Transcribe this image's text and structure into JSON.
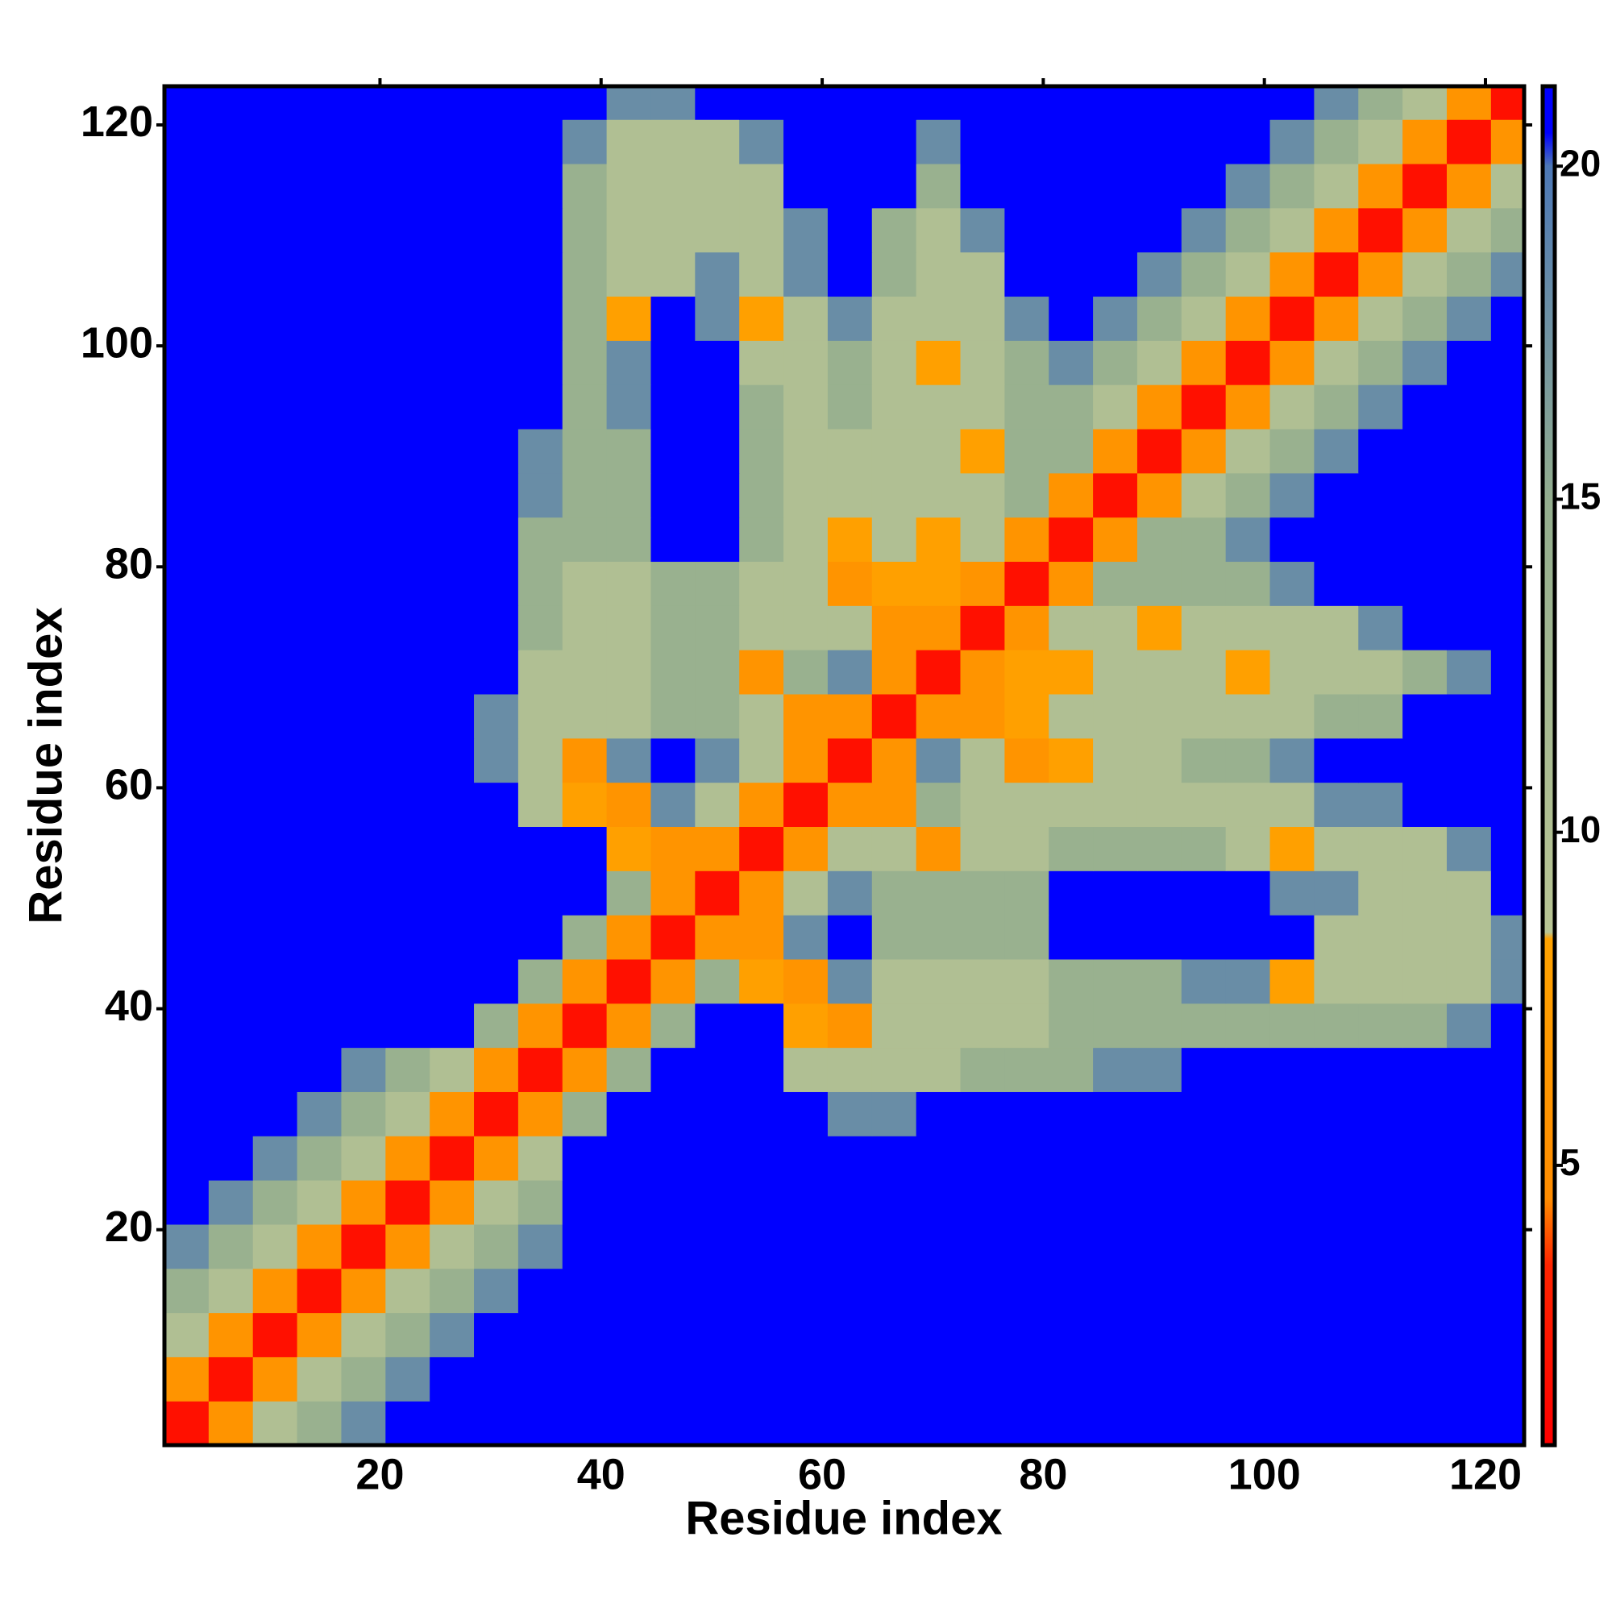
{
  "chart_data": {
    "type": "heatmap",
    "xlabel": "Residue index",
    "ylabel": "Residue index",
    "x": [
      2.5,
      6.5,
      10.5,
      14.5,
      18.5,
      22.5,
      26.5,
      30.5,
      34.5,
      38.5,
      42.5,
      46.5,
      50.5,
      54.5,
      58.5,
      62.5,
      66.5,
      70.5,
      74.5,
      78.5,
      82.5,
      86.5,
      90.5,
      94.5,
      98.5,
      102.5,
      106.5,
      110.5,
      114.5,
      118.5,
      122.5
    ],
    "y": [
      2.5,
      6.5,
      10.5,
      14.5,
      18.5,
      22.5,
      26.5,
      30.5,
      34.5,
      38.5,
      42.5,
      46.5,
      50.5,
      54.5,
      58.5,
      62.5,
      66.5,
      70.5,
      74.5,
      78.5,
      82.5,
      86.5,
      90.5,
      94.5,
      98.5,
      102.5,
      106.5,
      110.5,
      114.5,
      118.5,
      122.5
    ],
    "z": [
      [
        2,
        6,
        10,
        14,
        18,
        21,
        21,
        21,
        21,
        21,
        21,
        21,
        21,
        21,
        21,
        21,
        21,
        21,
        21,
        21,
        21,
        21,
        21,
        21,
        21,
        21,
        21,
        21,
        21,
        21,
        21
      ],
      [
        6,
        2,
        6,
        10,
        14,
        18,
        21,
        21,
        21,
        21,
        21,
        21,
        21,
        21,
        21,
        21,
        21,
        21,
        21,
        21,
        21,
        21,
        21,
        21,
        21,
        21,
        21,
        21,
        21,
        21,
        21
      ],
      [
        10,
        6,
        2,
        6,
        10,
        14,
        18,
        21,
        21,
        21,
        21,
        21,
        21,
        21,
        21,
        21,
        21,
        21,
        21,
        21,
        21,
        21,
        21,
        21,
        21,
        21,
        21,
        21,
        21,
        21,
        21
      ],
      [
        14,
        10,
        6,
        2,
        6,
        10,
        14,
        18,
        21,
        21,
        21,
        21,
        21,
        21,
        21,
        21,
        21,
        21,
        21,
        21,
        21,
        21,
        21,
        21,
        21,
        21,
        21,
        21,
        21,
        21,
        21
      ],
      [
        18,
        14,
        10,
        6,
        2,
        6,
        10,
        14,
        18,
        21,
        21,
        21,
        21,
        21,
        21,
        21,
        21,
        21,
        21,
        21,
        21,
        21,
        21,
        21,
        21,
        21,
        21,
        21,
        21,
        21,
        21
      ],
      [
        21,
        18,
        14,
        10,
        6,
        2,
        6,
        10,
        14,
        21,
        21,
        21,
        21,
        21,
        21,
        21,
        21,
        21,
        21,
        21,
        21,
        21,
        21,
        21,
        21,
        21,
        21,
        21,
        21,
        21,
        21
      ],
      [
        21,
        21,
        18,
        14,
        10,
        6,
        2,
        6,
        10,
        21,
        21,
        21,
        21,
        21,
        21,
        21,
        21,
        21,
        21,
        21,
        21,
        21,
        21,
        21,
        21,
        21,
        21,
        21,
        21,
        21,
        21
      ],
      [
        21,
        21,
        21,
        18,
        14,
        10,
        6,
        2,
        6,
        14,
        21,
        21,
        21,
        21,
        21,
        18,
        18,
        21,
        21,
        21,
        21,
        21,
        21,
        21,
        21,
        21,
        21,
        21,
        21,
        21,
        21
      ],
      [
        21,
        21,
        21,
        21,
        18,
        14,
        10,
        6,
        2,
        6,
        14,
        21,
        21,
        21,
        10,
        10,
        10,
        10,
        14,
        14,
        14,
        18,
        18,
        21,
        21,
        21,
        21,
        21,
        21,
        21,
        21
      ],
      [
        21,
        21,
        21,
        21,
        21,
        21,
        21,
        14,
        6,
        2,
        6,
        14,
        21,
        21,
        8,
        6,
        10,
        10,
        10,
        10,
        14,
        14,
        14,
        14,
        14,
        14,
        14,
        14,
        14,
        18,
        21
      ],
      [
        21,
        21,
        21,
        21,
        21,
        21,
        21,
        21,
        14,
        6,
        2,
        6,
        14,
        8,
        6,
        18,
        10,
        10,
        10,
        10,
        14,
        14,
        14,
        18,
        18,
        8,
        10,
        10,
        10,
        10,
        18
      ],
      [
        21,
        21,
        21,
        21,
        21,
        21,
        21,
        21,
        21,
        14,
        6,
        2,
        6,
        6,
        18,
        21,
        14,
        14,
        14,
        14,
        21,
        21,
        21,
        21,
        21,
        21,
        10,
        10,
        10,
        10,
        18
      ],
      [
        21,
        21,
        21,
        21,
        21,
        21,
        21,
        21,
        21,
        21,
        14,
        6,
        2,
        6,
        10,
        18,
        14,
        14,
        14,
        14,
        21,
        21,
        21,
        21,
        21,
        18,
        18,
        10,
        10,
        10,
        21
      ],
      [
        21,
        21,
        21,
        21,
        21,
        21,
        21,
        21,
        21,
        21,
        8,
        6,
        6,
        2,
        6,
        10,
        10,
        6,
        10,
        10,
        14,
        14,
        14,
        14,
        10,
        8,
        10,
        10,
        10,
        18,
        21
      ],
      [
        21,
        21,
        21,
        21,
        21,
        21,
        21,
        21,
        10,
        8,
        6,
        18,
        10,
        6,
        2,
        6,
        6,
        14,
        10,
        10,
        10,
        10,
        10,
        10,
        10,
        10,
        18,
        18,
        21,
        21,
        21
      ],
      [
        21,
        21,
        21,
        21,
        21,
        21,
        21,
        18,
        10,
        6,
        18,
        21,
        18,
        10,
        6,
        2,
        6,
        18,
        10,
        6,
        8,
        10,
        10,
        14,
        14,
        18,
        21,
        21,
        21,
        21,
        21
      ],
      [
        21,
        21,
        21,
        21,
        21,
        21,
        21,
        18,
        10,
        10,
        10,
        14,
        14,
        10,
        6,
        6,
        2,
        6,
        6,
        8,
        10,
        10,
        10,
        10,
        10,
        10,
        14,
        14,
        21,
        21,
        21
      ],
      [
        21,
        21,
        21,
        21,
        21,
        21,
        21,
        21,
        10,
        10,
        10,
        14,
        14,
        6,
        14,
        18,
        6,
        2,
        6,
        8,
        8,
        10,
        10,
        10,
        8,
        10,
        10,
        10,
        14,
        18,
        21
      ],
      [
        21,
        21,
        21,
        21,
        21,
        21,
        21,
        21,
        14,
        10,
        10,
        14,
        14,
        10,
        10,
        10,
        6,
        6,
        2,
        6,
        10,
        10,
        8,
        10,
        10,
        10,
        10,
        18,
        21,
        21,
        21
      ],
      [
        21,
        21,
        21,
        21,
        21,
        21,
        21,
        21,
        14,
        10,
        10,
        14,
        14,
        10,
        10,
        6,
        8,
        8,
        6,
        2,
        6,
        14,
        14,
        14,
        14,
        18,
        21,
        21,
        21,
        21,
        21
      ],
      [
        21,
        21,
        21,
        21,
        21,
        21,
        21,
        21,
        14,
        14,
        14,
        21,
        21,
        14,
        10,
        8,
        10,
        8,
        10,
        6,
        2,
        6,
        14,
        14,
        18,
        21,
        21,
        21,
        21,
        21,
        21
      ],
      [
        21,
        21,
        21,
        21,
        21,
        21,
        21,
        21,
        18,
        14,
        14,
        21,
        21,
        14,
        10,
        10,
        10,
        10,
        10,
        14,
        6,
        2,
        6,
        10,
        14,
        18,
        21,
        21,
        21,
        21,
        21
      ],
      [
        21,
        21,
        21,
        21,
        21,
        21,
        21,
        21,
        18,
        14,
        14,
        21,
        21,
        14,
        10,
        10,
        10,
        10,
        8,
        14,
        14,
        6,
        2,
        6,
        10,
        14,
        18,
        21,
        21,
        21,
        21
      ],
      [
        21,
        21,
        21,
        21,
        21,
        21,
        21,
        21,
        21,
        14,
        18,
        21,
        21,
        14,
        10,
        14,
        10,
        10,
        10,
        14,
        14,
        10,
        6,
        2,
        6,
        10,
        14,
        18,
        21,
        21,
        21
      ],
      [
        21,
        21,
        21,
        21,
        21,
        21,
        21,
        21,
        21,
        14,
        18,
        21,
        21,
        10,
        10,
        14,
        10,
        8,
        10,
        14,
        18,
        14,
        10,
        6,
        2,
        6,
        10,
        14,
        18,
        21,
        21
      ],
      [
        21,
        21,
        21,
        21,
        21,
        21,
        21,
        21,
        21,
        14,
        8,
        21,
        18,
        8,
        10,
        18,
        10,
        10,
        10,
        18,
        21,
        18,
        14,
        10,
        6,
        2,
        6,
        10,
        14,
        18,
        21
      ],
      [
        21,
        21,
        21,
        21,
        21,
        21,
        21,
        21,
        21,
        14,
        10,
        10,
        18,
        10,
        18,
        21,
        14,
        10,
        10,
        21,
        21,
        21,
        18,
        14,
        10,
        6,
        2,
        6,
        10,
        14,
        18
      ],
      [
        21,
        21,
        21,
        21,
        21,
        21,
        21,
        21,
        21,
        14,
        10,
        10,
        10,
        10,
        18,
        21,
        14,
        10,
        18,
        21,
        21,
        21,
        21,
        18,
        14,
        10,
        6,
        2,
        6,
        10,
        14
      ],
      [
        21,
        21,
        21,
        21,
        21,
        21,
        21,
        21,
        21,
        14,
        10,
        10,
        10,
        10,
        21,
        21,
        21,
        14,
        21,
        21,
        21,
        21,
        21,
        21,
        18,
        14,
        10,
        6,
        2,
        6,
        10
      ],
      [
        21,
        21,
        21,
        21,
        21,
        21,
        21,
        21,
        21,
        18,
        10,
        10,
        10,
        18,
        21,
        21,
        21,
        18,
        21,
        21,
        21,
        21,
        21,
        21,
        21,
        18,
        14,
        10,
        6,
        2,
        6
      ],
      [
        21,
        21,
        21,
        21,
        21,
        21,
        21,
        21,
        21,
        21,
        18,
        18,
        21,
        21,
        21,
        21,
        21,
        21,
        21,
        21,
        21,
        21,
        21,
        21,
        21,
        21,
        18,
        14,
        10,
        6,
        2
      ]
    ],
    "xlim": [
      0.5,
      123.5
    ],
    "ylim": [
      0.5,
      123.5
    ],
    "xticks": [
      20,
      40,
      60,
      80,
      100,
      120
    ],
    "yticks": [
      20,
      40,
      60,
      80,
      100,
      120
    ],
    "colorbar": {
      "lim": [
        0.8,
        21.2
      ],
      "ticks": [
        5,
        10,
        15,
        20
      ]
    },
    "colorscale": [
      {
        "value": 0.8,
        "color": "#ff0000"
      },
      {
        "value": 3.5,
        "color": "#ff2400"
      },
      {
        "value": 4.5,
        "color": "#ff8c00"
      },
      {
        "value": 8.4,
        "color": "#ffa200"
      },
      {
        "value": 8.5,
        "color": "#b9c594"
      },
      {
        "value": 15,
        "color": "#93ad8e"
      },
      {
        "value": 20,
        "color": "#4d78b6"
      },
      {
        "value": 20.5,
        "color": "#0000ff"
      },
      {
        "value": 21.2,
        "color": "#0000ff"
      }
    ]
  }
}
